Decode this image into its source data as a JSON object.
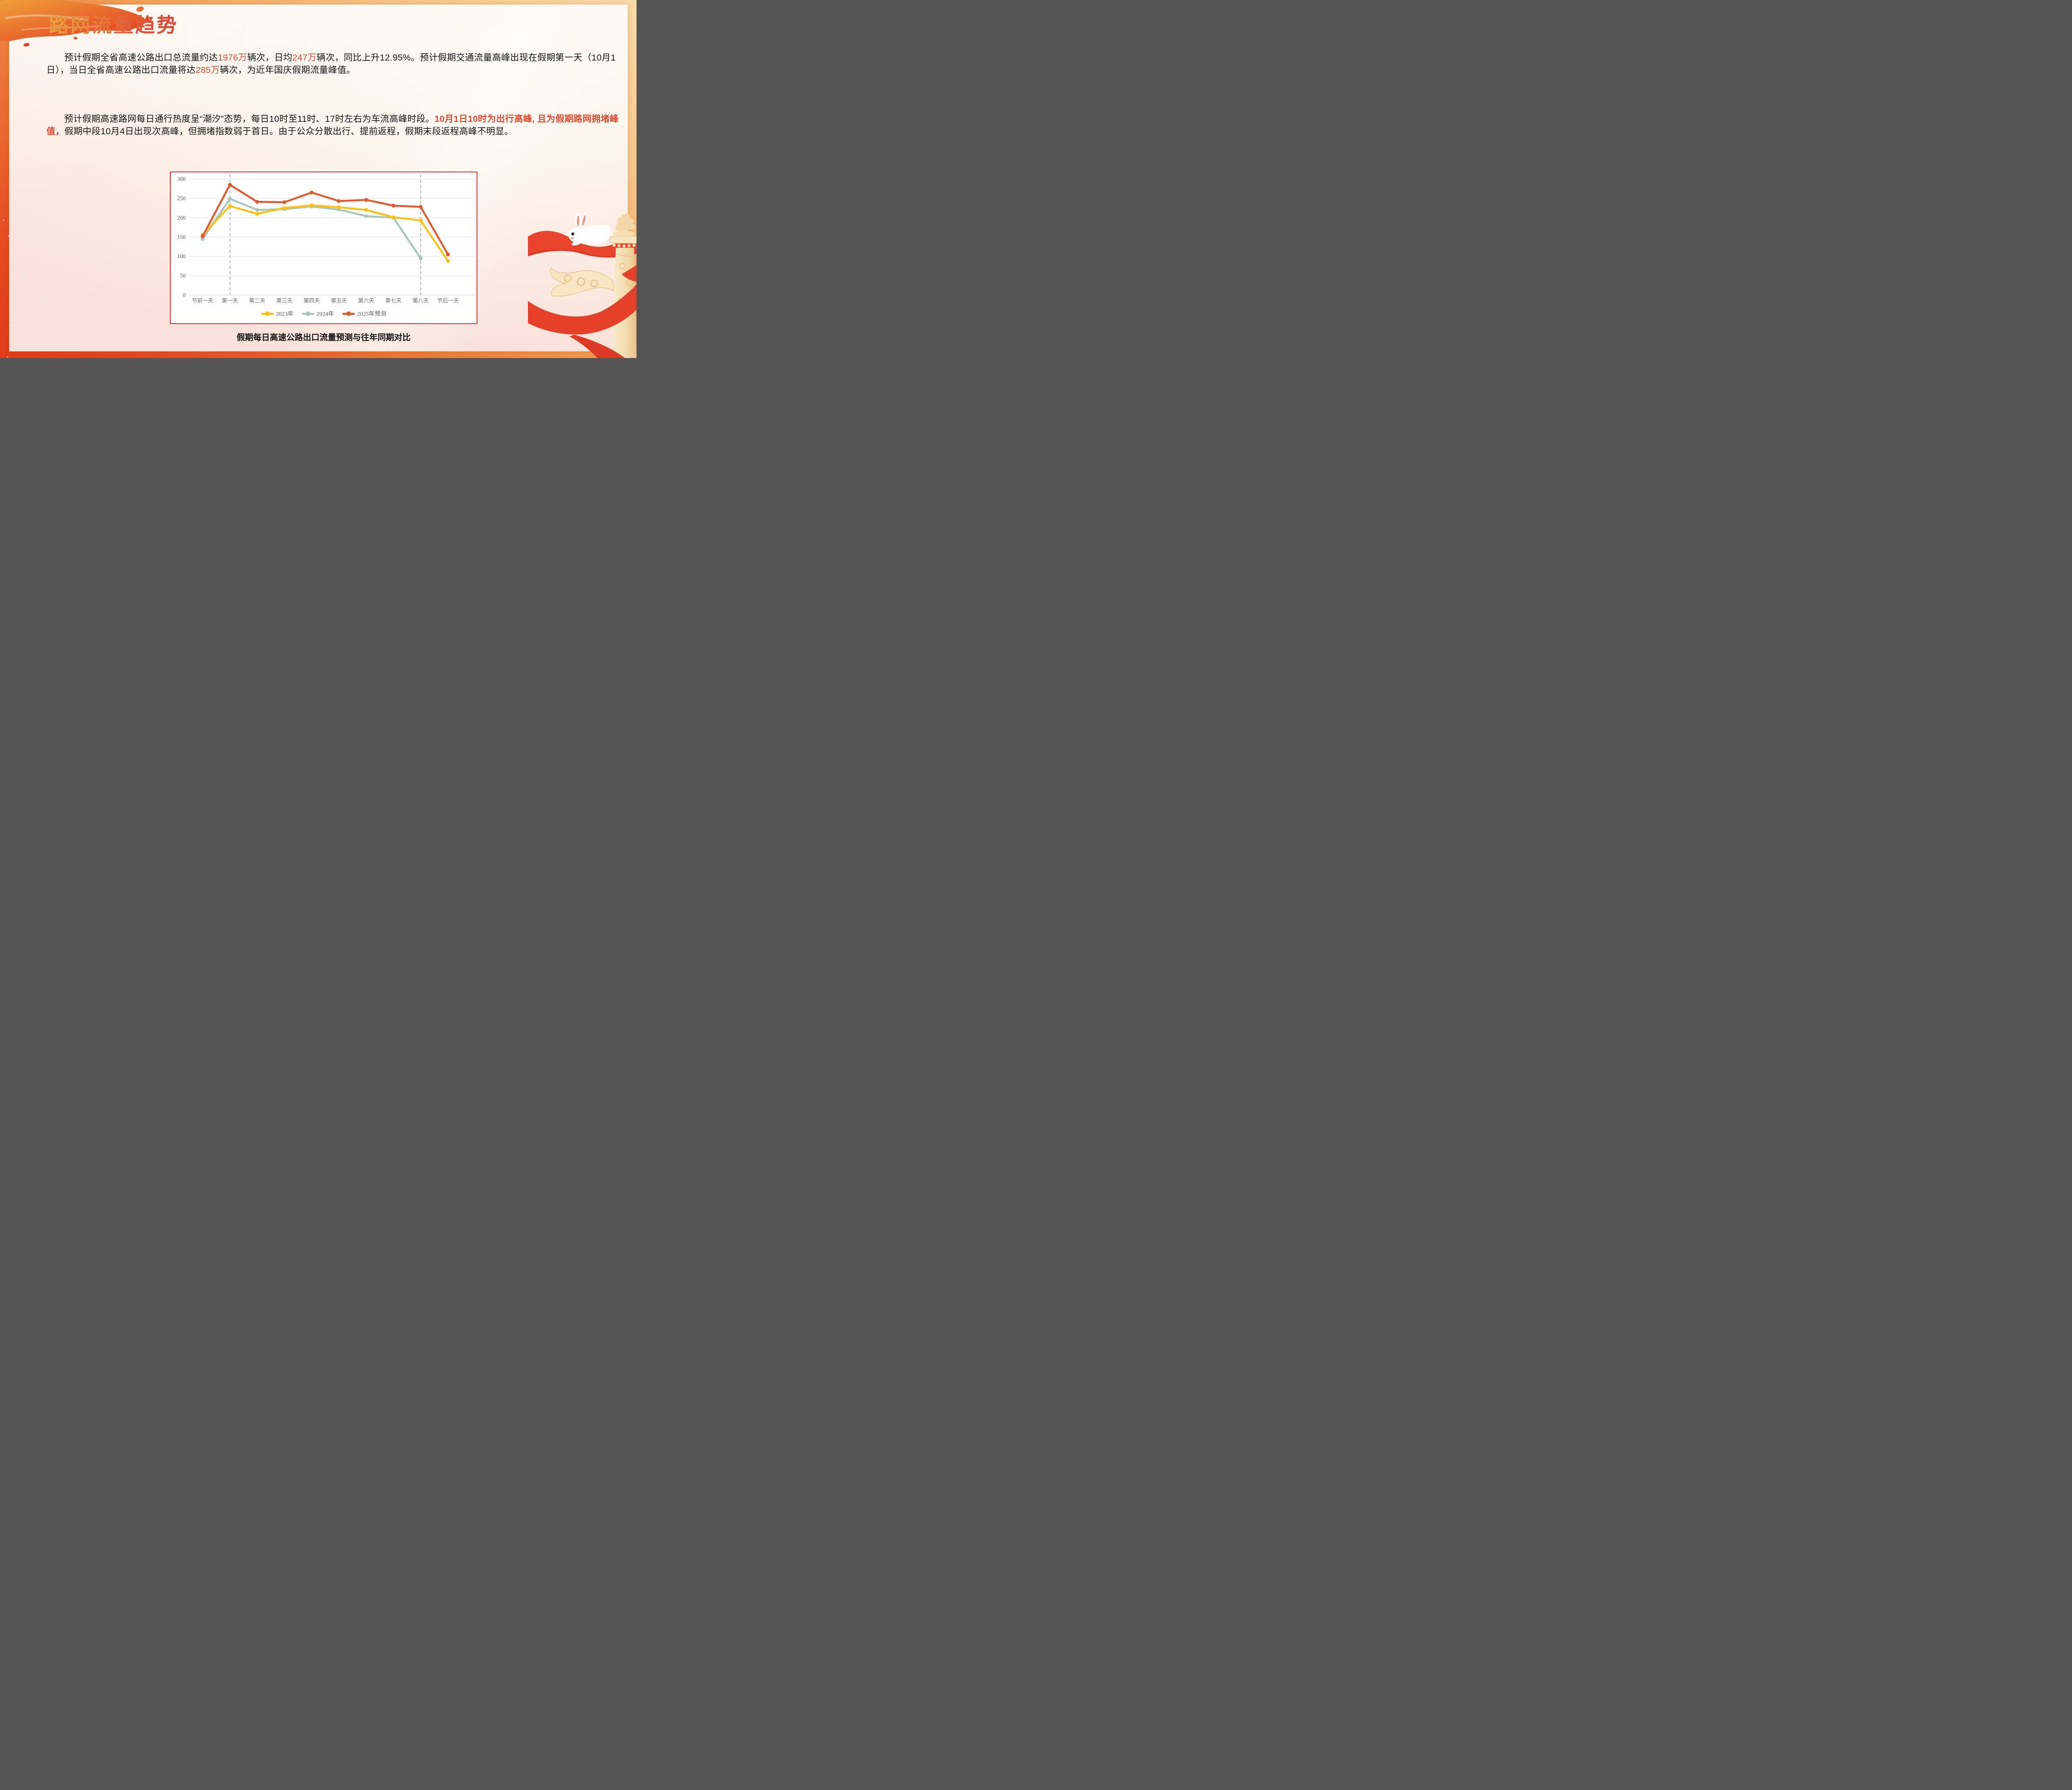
{
  "slide": {
    "title": "路网流量趋势",
    "p1": {
      "segments": [
        {
          "text": "预计假期全省高速公路出口总流量约达"
        },
        {
          "text": "1976万"
        },
        {
          "text": "辆次，日均"
        },
        {
          "text": "247万"
        },
        {
          "text": "辆次，同比上升12.95%。预计假期交通流量高峰出现在假期第一天（10月1日），当日全省高速公路出口流量将达"
        },
        {
          "text": "285万"
        },
        {
          "text": "辆次，为近年国庆假期流量峰值。"
        }
      ]
    },
    "p2": {
      "segments": [
        {
          "text": "预计假期高速路网每日通行热度呈“潮汐”态势，每日10时至11时、17时左右为车流高峰时段。"
        },
        {
          "text": "10月1日10时为出行高峰, 且为假期路网拥堵峰值，"
        },
        {
          "text": "假期中段10月4日出现次高峰，但拥堵指数弱于首日。由于公众分散出行、提前返程，假期末段返程高峰不明显。"
        }
      ]
    },
    "caption": "假期每日高速公路出口流量预测与往年同期对比"
  },
  "colors": {
    "highlight_red": "#DF4A31",
    "chart_border": "#E02B31",
    "title_gradient_start": "#E9A440",
    "title_gradient_end": "#DC4132",
    "gridline": "#DCDCDC",
    "axis": "#C9C9C9",
    "dashed_line": "#A8A8A8"
  },
  "chart_data": {
    "type": "line",
    "categories": [
      "节前一天",
      "第一天",
      "第二天",
      "第三天",
      "第四天",
      "第五天",
      "第六天",
      "第七天",
      "第八天",
      "节后一天"
    ],
    "series": [
      {
        "name": "2023年",
        "color": "#FFC012",
        "values": [
          156,
          230,
          210,
          225,
          232,
          227,
          220,
          201,
          193,
          88
        ]
      },
      {
        "name": "2024年",
        "color": "#A9C6BA",
        "values": [
          145,
          249,
          220,
          222,
          229,
          221,
          204,
          200,
          95,
          null
        ]
      },
      {
        "name": "2025年预测",
        "color": "#E2582E",
        "values": [
          152,
          285,
          241,
          240,
          265,
          243,
          246,
          231,
          228,
          105
        ]
      }
    ],
    "ylim": [
      0,
      300
    ],
    "yticks": [
      0,
      50,
      100,
      150,
      200,
      250,
      300
    ],
    "grid": true,
    "legend_position": "bottom",
    "dashed_marker_categories": [
      "第一天",
      "第八天"
    ],
    "title": "",
    "xlabel": "",
    "ylabel": ""
  }
}
